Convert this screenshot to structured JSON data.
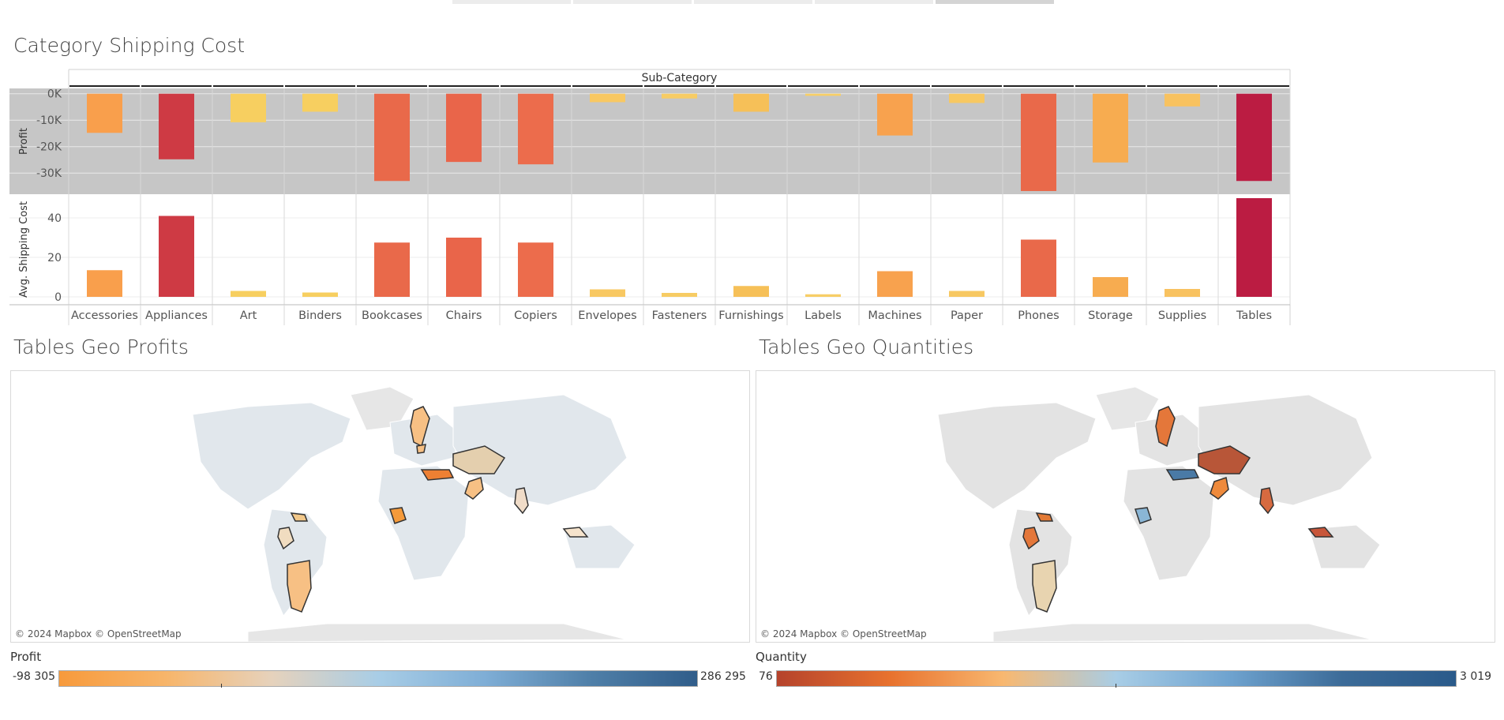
{
  "tabs": [
    "",
    "",
    "",
    "",
    ""
  ],
  "dashboard": {
    "shipping_title": "Category Shipping Cost",
    "geo_profit_title": "Tables Geo Profits",
    "geo_quantity_title": "Tables Geo Quantities"
  },
  "chart_data": {
    "type": "bar",
    "header": "Sub-Category",
    "categories": [
      "Accessories",
      "Appliances",
      "Art",
      "Binders",
      "Bookcases",
      "Chairs",
      "Copiers",
      "Envelopes",
      "Fasteners",
      "Furnishings",
      "Labels",
      "Machines",
      "Paper",
      "Phones",
      "Storage",
      "Supplies",
      "Tables"
    ],
    "panes": [
      {
        "ylabel": "Profit",
        "ylim": [
          -38000,
          2000
        ],
        "ticks": [
          0,
          -10000,
          -20000,
          -30000
        ],
        "tick_labels": [
          "0K",
          "-10K",
          "-20K",
          "-30K"
        ],
        "values": [
          -14800,
          -24800,
          -10800,
          -6800,
          -33000,
          -25800,
          -26700,
          -3200,
          -1800,
          -6800,
          -800,
          -15800,
          -3500,
          -36800,
          -26000,
          -4800,
          -33000
        ],
        "background": "#c6c6c6"
      },
      {
        "ylabel": "Avg. Shipping Cost",
        "ylim": [
          -4,
          52
        ],
        "ticks": [
          40,
          20,
          0
        ],
        "tick_labels": [
          "40",
          "20",
          "0"
        ],
        "values": [
          13.5,
          41,
          3,
          2.2,
          27.5,
          30,
          27.5,
          3.8,
          2,
          5.5,
          1.3,
          13,
          3,
          29,
          10,
          4,
          50
        ]
      }
    ],
    "bar_colors": [
      "#f99f4c",
      "#ce3a44",
      "#f7cf60",
      "#f7cf60",
      "#e9694a",
      "#e9654a",
      "#ec6c4c",
      "#f8c862",
      "#f7cc64",
      "#f6c058",
      "#f7ce66",
      "#f8a24e",
      "#f7c862",
      "#e9694a",
      "#f7ac50",
      "#f8c260",
      "#bb1c42"
    ],
    "grid": true
  },
  "maps": {
    "credit": "© 2024 Mapbox © OpenStreetMap",
    "profit_regions": [
      {
        "name": "Sweden",
        "color": "#f7c084"
      },
      {
        "name": "Norway",
        "color": "#f7c084"
      },
      {
        "name": "Kazakhstan",
        "color": "#e4cfae"
      },
      {
        "name": "Turkey",
        "color": "#ee8033"
      },
      {
        "name": "Pakistan",
        "color": "#f7c084"
      },
      {
        "name": "Myanmar",
        "color": "#f0dcc8"
      },
      {
        "name": "Nigeria",
        "color": "#f59a3a"
      },
      {
        "name": "Cuba",
        "color": "#f2c88a"
      },
      {
        "name": "Colombia",
        "color": "#f0dcc0"
      },
      {
        "name": "Argentina",
        "color": "#f7c084"
      },
      {
        "name": "Papua New Guinea",
        "color": "#f5e3cc"
      }
    ],
    "quantity_regions": [
      {
        "name": "Sweden",
        "color": "#e4773a"
      },
      {
        "name": "Kazakhstan",
        "color": "#b85638"
      },
      {
        "name": "Turkey",
        "color": "#4a7aa6"
      },
      {
        "name": "Pakistan",
        "color": "#ee8a3c"
      },
      {
        "name": "Myanmar",
        "color": "#d66a40"
      },
      {
        "name": "Nigeria",
        "color": "#8ab6d6"
      },
      {
        "name": "Cuba",
        "color": "#e37a35"
      },
      {
        "name": "Colombia",
        "color": "#e4773a"
      },
      {
        "name": "Argentina",
        "color": "#e8d4b0"
      },
      {
        "name": "Papua New Guinea",
        "color": "#c8563a"
      }
    ]
  },
  "legends": {
    "profit": {
      "title": "Profit",
      "min": "-98 305",
      "max": "286 295",
      "zero_fraction": 0.255
    },
    "quantity": {
      "title": "Quantity",
      "min": "76",
      "max": "3 019",
      "mid_fraction": 0.5
    }
  },
  "colors": {
    "orange_blue": [
      "#f79a3c",
      "#f7b56a",
      "#e6d2bc",
      "#a8cde6",
      "#7faed6",
      "#4f7fa8",
      "#305d8a"
    ],
    "red_blue": [
      "#b5432c",
      "#e8722e",
      "#f8b870",
      "#a8cde6",
      "#6fa3cf",
      "#3c6b98",
      "#2a5a8a"
    ],
    "land": "#e3e3e3",
    "profit_land": "#e1e7ec",
    "water": "#ffffff"
  }
}
